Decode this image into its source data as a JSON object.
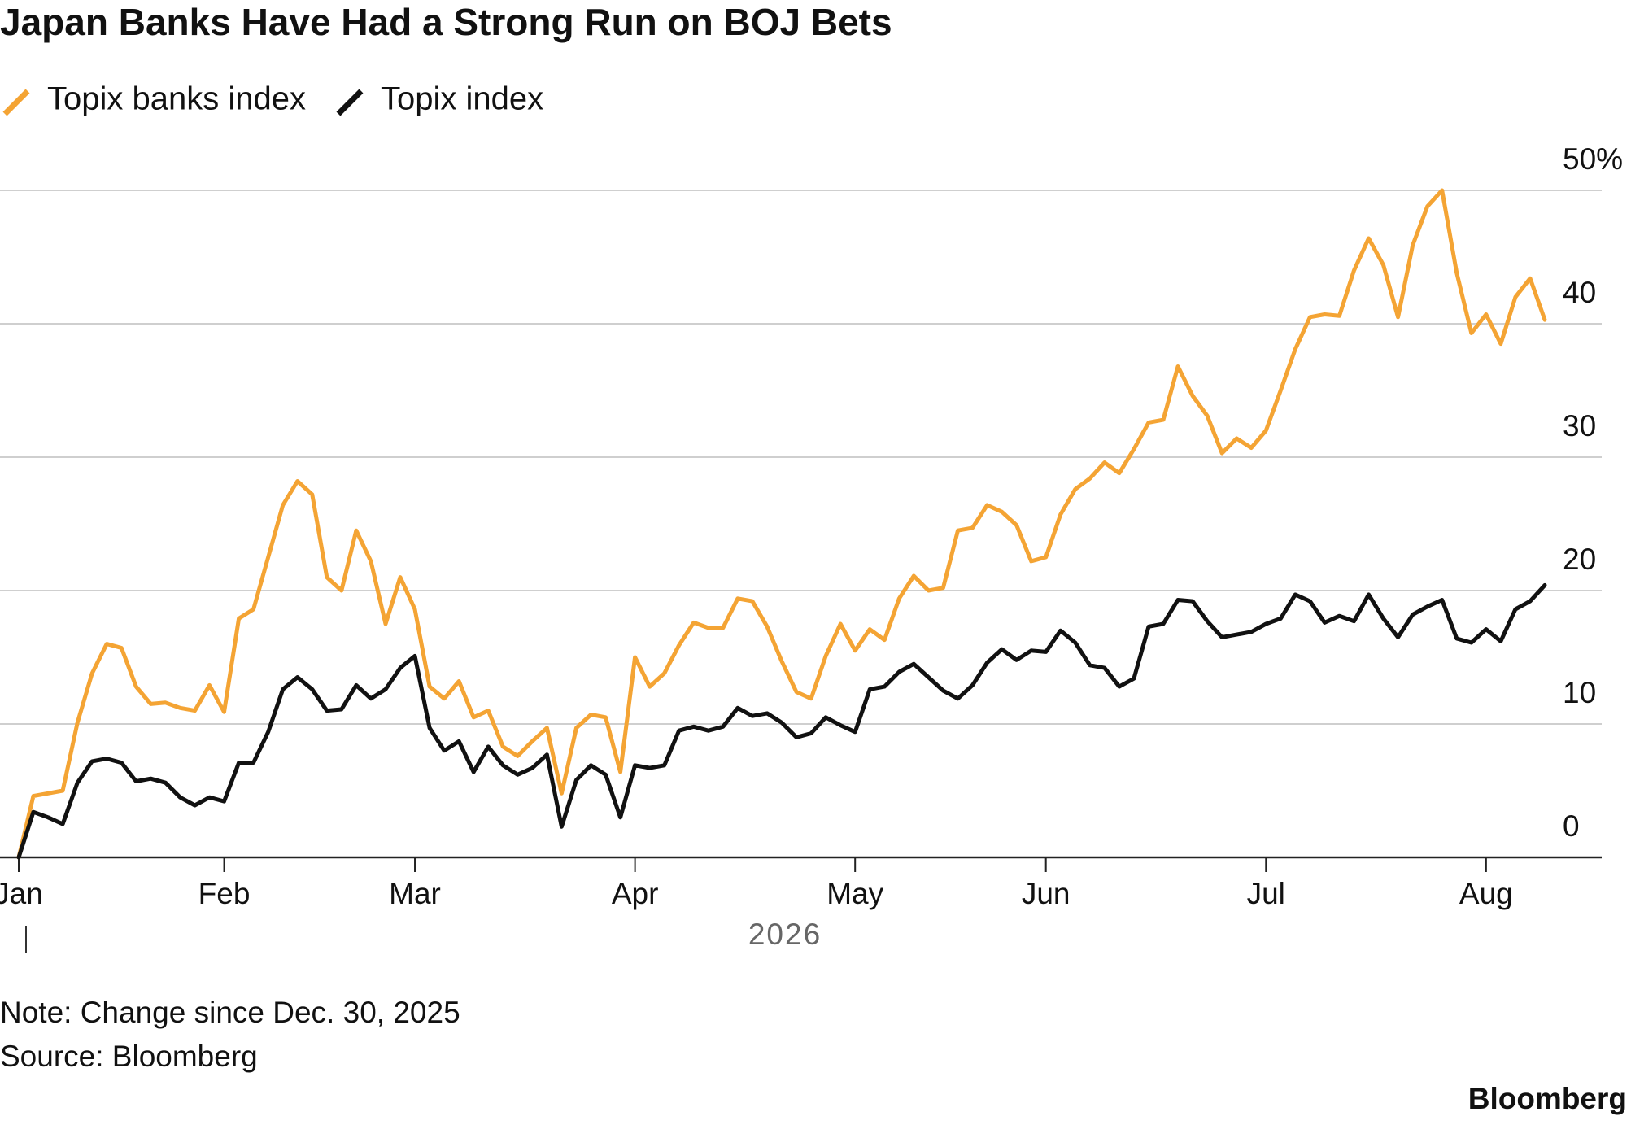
{
  "chart_data": {
    "type": "line",
    "title": "Japan Banks Have Had a Strong Run on BOJ Bets",
    "x_label": "2026",
    "note": "Note: Change since Dec. 30, 2025",
    "source": "Source: Bloomberg",
    "brand": "Bloomberg",
    "categories": [
      "Jan",
      null,
      null,
      null,
      null,
      null,
      null,
      null,
      null,
      null,
      null,
      null,
      null,
      null,
      "Feb",
      null,
      null,
      null,
      null,
      null,
      null,
      null,
      null,
      null,
      null,
      null,
      null,
      "Mar",
      null,
      null,
      null,
      null,
      null,
      null,
      null,
      null,
      null,
      null,
      null,
      null,
      null,
      null,
      "Apr",
      null,
      null,
      null,
      null,
      null,
      null,
      null,
      null,
      null,
      null,
      null,
      null,
      null,
      null,
      "May",
      null,
      null,
      null,
      null,
      null,
      null,
      null,
      null,
      null,
      null,
      null,
      null,
      "Jun",
      null,
      null,
      null,
      null,
      null,
      null,
      null,
      null,
      null,
      null,
      null,
      null,
      null,
      null,
      "Jul",
      null,
      null,
      null,
      null,
      null,
      null,
      null,
      null,
      null,
      null,
      null,
      null,
      null,
      null,
      "Aug",
      null,
      null,
      null,
      null
    ],
    "series": [
      {
        "name": "Topix banks index",
        "color": "#f4a434",
        "values": [
          0,
          4.6,
          4.8,
          5.0,
          10.1,
          13.8,
          16.0,
          15.7,
          12.8,
          11.5,
          11.6,
          11.2,
          11.0,
          12.9,
          10.9,
          17.9,
          18.6,
          22.5,
          26.4,
          28.2,
          27.2,
          21.0,
          20.0,
          24.5,
          22.2,
          17.5,
          21.0,
          18.6,
          12.8,
          11.9,
          13.2,
          10.5,
          11.0,
          8.3,
          7.6,
          8.7,
          9.7,
          4.8,
          9.7,
          10.7,
          10.5,
          6.4,
          15.0,
          12.8,
          13.8,
          15.9,
          17.6,
          17.2,
          17.2,
          19.4,
          19.2,
          17.3,
          14.7,
          12.4,
          11.9,
          15.1,
          17.5,
          15.5,
          17.1,
          16.3,
          19.4,
          21.1,
          20.0,
          20.2,
          24.5,
          24.7,
          26.4,
          25.9,
          24.9,
          22.2,
          22.5,
          25.7,
          27.6,
          28.4,
          29.6,
          28.8,
          30.6,
          32.6,
          32.8,
          36.8,
          34.6,
          33.1,
          30.3,
          31.4,
          30.7,
          32.0,
          35.0,
          38.1,
          40.5,
          40.7,
          40.6,
          44.0,
          46.4,
          44.4,
          40.5,
          45.9,
          48.8,
          50.0,
          43.8,
          39.3,
          40.7,
          38.5,
          42.0,
          43.4,
          40.3
        ]
      },
      {
        "name": "Topix index",
        "color": "#111111",
        "values": [
          0,
          3.4,
          3.0,
          2.5,
          5.6,
          7.2,
          7.4,
          7.1,
          5.7,
          5.9,
          5.6,
          4.5,
          3.9,
          4.5,
          4.2,
          7.1,
          7.1,
          9.4,
          12.6,
          13.5,
          12.6,
          11.0,
          11.1,
          12.9,
          11.9,
          12.6,
          14.2,
          15.1,
          9.7,
          8.0,
          8.7,
          6.4,
          8.3,
          6.9,
          6.2,
          6.7,
          7.7,
          2.3,
          5.8,
          6.9,
          6.2,
          3.0,
          6.9,
          6.7,
          6.9,
          9.5,
          9.8,
          9.5,
          9.8,
          11.2,
          10.6,
          10.8,
          10.1,
          9.0,
          9.3,
          10.5,
          9.9,
          9.4,
          12.6,
          12.8,
          13.9,
          14.5,
          13.5,
          12.5,
          11.9,
          12.9,
          14.6,
          15.6,
          14.8,
          15.5,
          15.4,
          17.0,
          16.1,
          14.4,
          14.2,
          12.8,
          13.4,
          17.3,
          17.5,
          19.3,
          19.2,
          17.7,
          16.5,
          16.7,
          16.9,
          17.5,
          17.9,
          19.7,
          19.2,
          17.6,
          18.1,
          17.7,
          19.7,
          17.9,
          16.5,
          18.2,
          18.8,
          19.3,
          16.4,
          16.1,
          17.1,
          16.2,
          18.6,
          19.2,
          20.4
        ]
      }
    ],
    "ylim": [
      0,
      50
    ],
    "yticks": [
      0,
      10,
      20,
      30,
      40,
      {
        "value": 50,
        "label": "50%"
      }
    ],
    "grid": true,
    "legend": "top-left"
  }
}
